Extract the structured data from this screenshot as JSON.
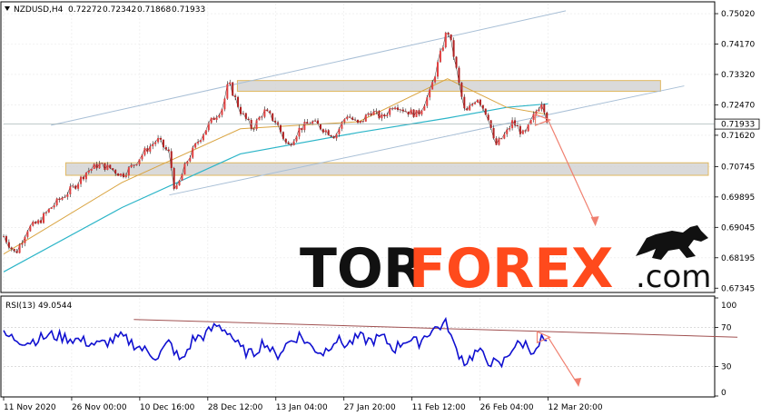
{
  "chart_data": [
    {
      "type": "line",
      "symbol_label": "NZDUSD,H4",
      "ohlc": [
        "0.72272",
        "0.72342",
        "0.71868",
        "0.71933"
      ],
      "last_price": "0.71933",
      "y_ticks": [
        "0.75020",
        "0.74170",
        "0.73320",
        "0.72470",
        "0.71620",
        "0.70745",
        "0.69895",
        "0.69045",
        "0.68195",
        "0.67345"
      ],
      "x_ticks": [
        "11 Nov 2020",
        "26 Nov 00:00",
        "10 Dec 16:00",
        "28 Dec 12:00",
        "13 Jan 04:00",
        "27 Jan 20:00",
        "11 Feb 12:00",
        "26 Feb 04:00",
        "12 Mar 20:00"
      ],
      "ylim": [
        0.6725,
        0.753
      ],
      "price_path": [
        [
          0,
          0.688
        ],
        [
          2,
          0.683
        ],
        [
          4,
          0.69
        ],
        [
          6,
          0.692
        ],
        [
          8,
          0.696
        ],
        [
          10,
          0.699
        ],
        [
          12,
          0.702
        ],
        [
          14,
          0.706
        ],
        [
          16,
          0.708
        ],
        [
          18,
          0.707
        ],
        [
          20,
          0.705
        ],
        [
          22,
          0.708
        ],
        [
          24,
          0.712
        ],
        [
          26,
          0.715
        ],
        [
          28,
          0.711
        ],
        [
          29,
          0.7
        ],
        [
          31,
          0.709
        ],
        [
          33,
          0.715
        ],
        [
          35,
          0.72
        ],
        [
          37,
          0.724
        ],
        [
          38,
          0.731
        ],
        [
          40,
          0.723
        ],
        [
          42,
          0.718
        ],
        [
          44,
          0.723
        ],
        [
          46,
          0.72
        ],
        [
          48,
          0.713
        ],
        [
          50,
          0.718
        ],
        [
          52,
          0.72
        ],
        [
          54,
          0.718
        ],
        [
          56,
          0.716
        ],
        [
          58,
          0.722
        ],
        [
          60,
          0.719
        ],
        [
          62,
          0.723
        ],
        [
          64,
          0.721
        ],
        [
          66,
          0.725
        ],
        [
          68,
          0.723
        ],
        [
          70,
          0.722
        ],
        [
          72,
          0.728
        ],
        [
          74,
          0.74
        ],
        [
          75,
          0.746
        ],
        [
          76,
          0.739
        ],
        [
          77,
          0.73
        ],
        [
          78,
          0.722
        ],
        [
          80,
          0.727
        ],
        [
          82,
          0.721
        ],
        [
          83,
          0.713
        ],
        [
          85,
          0.717
        ],
        [
          86,
          0.72
        ],
        [
          88,
          0.716
        ],
        [
          90,
          0.723
        ],
        [
          91,
          0.726
        ],
        [
          92,
          0.7193
        ]
      ],
      "ma_slow_path": [
        [
          0,
          0.678
        ],
        [
          20,
          0.696
        ],
        [
          40,
          0.711
        ],
        [
          60,
          0.717
        ],
        [
          75,
          0.721
        ],
        [
          85,
          0.724
        ],
        [
          92,
          0.725
        ]
      ],
      "ma_fast_path": [
        [
          0,
          0.683
        ],
        [
          20,
          0.703
        ],
        [
          40,
          0.718
        ],
        [
          60,
          0.72
        ],
        [
          75,
          0.732
        ],
        [
          85,
          0.724
        ],
        [
          92,
          0.722
        ]
      ],
      "resistance_zone": [
        0.7285,
        0.7315
      ],
      "support_zone": [
        0.705,
        0.7085
      ],
      "channel_upper": [
        [
          8,
          0.719
        ],
        [
          95,
          0.751
        ]
      ],
      "channel_lower": [
        [
          28,
          0.6995
        ],
        [
          115,
          0.73
        ]
      ],
      "forecast_arrow": [
        [
          92,
          0.7205
        ],
        [
          100,
          0.6915
        ]
      ],
      "colors": {
        "candles": "#c0392b",
        "ma_slow": "#2cb5c8",
        "ma_fast": "#d9a441",
        "channel": "#a8bfd6",
        "zone_fill": "#d3d3d3",
        "zone_border": "#e0b860",
        "arrow": "#f08070"
      }
    },
    {
      "type": "line",
      "label": "RSI(13) 49.0544",
      "y_ticks": [
        "100",
        "70",
        "30",
        "0"
      ],
      "ylim": [
        0,
        100
      ],
      "rsi_path": [
        [
          0,
          62
        ],
        [
          4,
          55
        ],
        [
          8,
          62
        ],
        [
          12,
          58
        ],
        [
          16,
          52
        ],
        [
          20,
          60
        ],
        [
          24,
          46
        ],
        [
          26,
          40
        ],
        [
          28,
          55
        ],
        [
          30,
          34
        ],
        [
          32,
          58
        ],
        [
          34,
          62
        ],
        [
          36,
          72
        ],
        [
          38,
          66
        ],
        [
          40,
          48
        ],
        [
          42,
          42
        ],
        [
          44,
          56
        ],
        [
          46,
          40
        ],
        [
          48,
          54
        ],
        [
          50,
          62
        ],
        [
          52,
          50
        ],
        [
          54,
          44
        ],
        [
          56,
          58
        ],
        [
          58,
          52
        ],
        [
          60,
          60
        ],
        [
          62,
          56
        ],
        [
          64,
          60
        ],
        [
          66,
          48
        ],
        [
          68,
          58
        ],
        [
          70,
          54
        ],
        [
          72,
          66
        ],
        [
          74,
          72
        ],
        [
          75,
          74
        ],
        [
          76,
          52
        ],
        [
          78,
          34
        ],
        [
          80,
          46
        ],
        [
          82,
          36
        ],
        [
          84,
          30
        ],
        [
          86,
          50
        ],
        [
          88,
          54
        ],
        [
          90,
          44
        ],
        [
          91,
          60
        ],
        [
          92,
          49
        ]
      ],
      "trend_line": [
        [
          22,
          78
        ],
        [
          124,
          60
        ]
      ],
      "forecast_arrow": [
        [
          92,
          60
        ],
        [
          97,
          12
        ]
      ],
      "colors": {
        "rsi": "#1010d0",
        "trend": "#a05050",
        "arrow": "#f08070"
      }
    }
  ],
  "watermark": {
    "part1": "TOR",
    "part2": "FOREX",
    "part3": ".com",
    "logo": "bull-icon"
  }
}
